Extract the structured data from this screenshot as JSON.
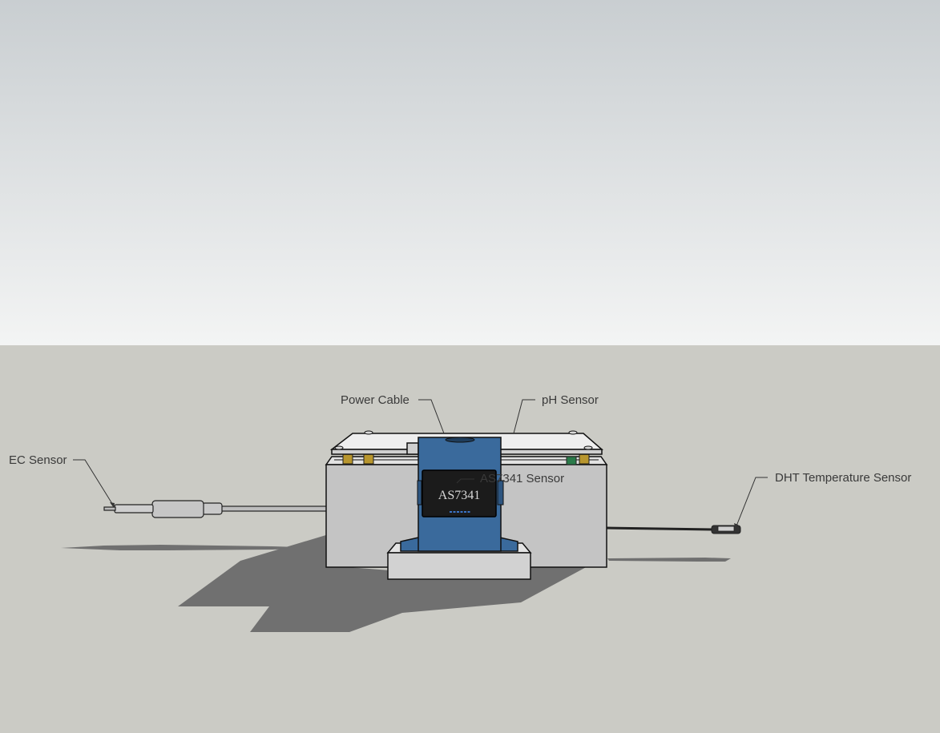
{
  "labels": {
    "ec_sensor": "EC Sensor",
    "power_cable": "Power Cable",
    "ph_sensor": "pH Sensor",
    "as7341_sensor": "AS7341 Sensor",
    "dht_sensor": "DHT Temperature Sensor",
    "chip_marking": "AS7341"
  },
  "colors": {
    "sky_top": "#c9ced1",
    "sky_bottom": "#f3f4f4",
    "ground": "#cbcbc5",
    "shadow": "#707070",
    "box": "#c4c4c4",
    "lid": "#eeeeee",
    "blue_housing": "#3a6a9c",
    "chip": "#1b1b1b",
    "standoff": "#b8962e"
  }
}
